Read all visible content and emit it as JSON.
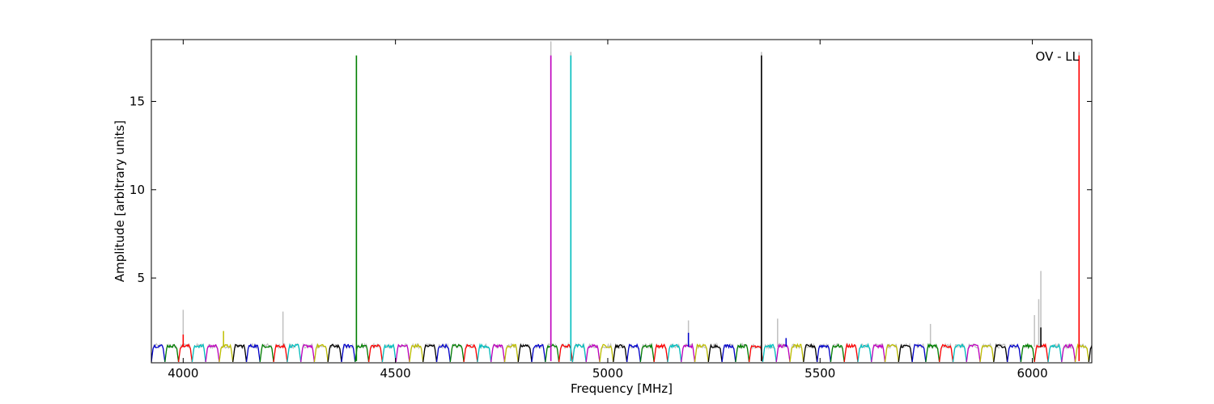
{
  "chart_data": {
    "type": "line",
    "title": "",
    "xlabel": "Frequency [MHz]",
    "ylabel": "Amplitude [arbitrary units]",
    "annotation": "OV - LL",
    "xlim": [
      3925,
      6140
    ],
    "ylim": [
      0.2,
      18.5
    ],
    "xticks": [
      4000,
      4500,
      5000,
      5500,
      6000
    ],
    "yticks": [
      5,
      10,
      15
    ],
    "grid": false,
    "background_color": "#c0c0c0",
    "color_cycle": [
      "#0000cc",
      "#007f00",
      "#ff0000",
      "#00bfbf",
      "#bf00bf",
      "#bfbf00",
      "#000000"
    ],
    "band_width_mhz": 32,
    "first_band_start_mhz": 3925,
    "spikes": [
      {
        "x": 4408,
        "y": 17.6,
        "color": "#007f00"
      },
      {
        "x": 4866,
        "y": 17.6,
        "color": "#bf00bf"
      },
      {
        "x": 4913,
        "y": 17.6,
        "color": "#00bfbf"
      },
      {
        "x": 5362,
        "y": 17.6,
        "color": "#000000"
      },
      {
        "x": 6110,
        "y": 17.6,
        "color": "#ff0000"
      }
    ],
    "background_spikes": [
      {
        "x": 4000,
        "y": 3.2
      },
      {
        "x": 4235,
        "y": 3.1
      },
      {
        "x": 4866,
        "y": 18.4
      },
      {
        "x": 4913,
        "y": 17.8
      },
      {
        "x": 5362,
        "y": 17.8
      },
      {
        "x": 5190,
        "y": 2.6
      },
      {
        "x": 5400,
        "y": 2.7
      },
      {
        "x": 5760,
        "y": 2.4
      },
      {
        "x": 6005,
        "y": 2.9
      },
      {
        "x": 6015,
        "y": 3.8
      },
      {
        "x": 6020,
        "y": 5.4
      },
      {
        "x": 6110,
        "y": 17.8
      }
    ],
    "foreground_bumps": [
      {
        "x": 4000,
        "y": 1.8,
        "color": "#ff0000"
      },
      {
        "x": 4095,
        "y": 2.0,
        "color": "#bfbf00"
      },
      {
        "x": 5190,
        "y": 1.9,
        "color": "#0000cc"
      },
      {
        "x": 5420,
        "y": 1.6,
        "color": "#0000cc"
      },
      {
        "x": 6020,
        "y": 2.2,
        "color": "#000000"
      }
    ]
  }
}
